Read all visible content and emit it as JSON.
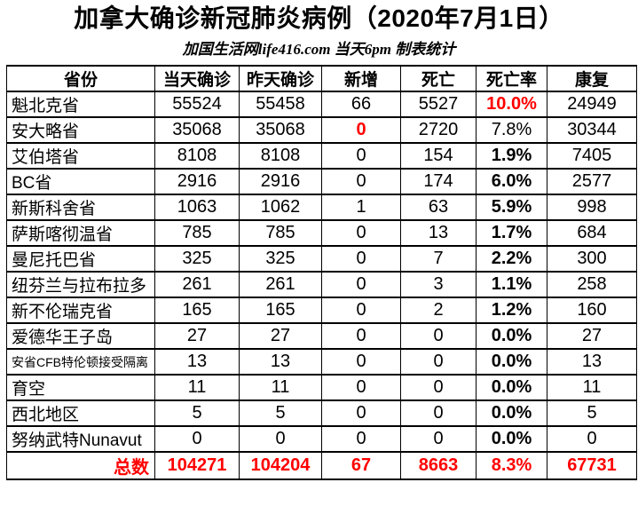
{
  "title": "加拿大确诊新冠肺炎病例（2020年7月1日）",
  "subtitle": "加国生活网life416.com 当天6pm 制表统计",
  "colors": {
    "accent_red": "#FF0000",
    "text": "#000000",
    "border": "#000000",
    "background": "#FFFFFF"
  },
  "table": {
    "headers": [
      "省份",
      "当天确诊",
      "昨天确诊",
      "新增",
      "死亡",
      "死亡率",
      "康复"
    ],
    "rows": [
      {
        "province": "魁北克省",
        "today": "55524",
        "yesterday": "55458",
        "new_cases": "66",
        "deaths": "5527",
        "death_rate": "10.0%",
        "recovered": "24949",
        "new_style": "normal",
        "rate_style": "red-bold",
        "small_label": false
      },
      {
        "province": "安大略省",
        "today": "35068",
        "yesterday": "35068",
        "new_cases": "0",
        "deaths": "2720",
        "death_rate": "7.8%",
        "recovered": "30344",
        "new_style": "red-bold",
        "rate_style": "normal",
        "small_label": false
      },
      {
        "province": "艾伯塔省",
        "today": "8108",
        "yesterday": "8108",
        "new_cases": "0",
        "deaths": "154",
        "death_rate": "1.9%",
        "recovered": "7405",
        "new_style": "normal",
        "rate_style": "bold",
        "small_label": false
      },
      {
        "province": "BC省",
        "today": "2916",
        "yesterday": "2916",
        "new_cases": "0",
        "deaths": "174",
        "death_rate": "6.0%",
        "recovered": "2577",
        "new_style": "normal",
        "rate_style": "bold",
        "small_label": false
      },
      {
        "province": "新斯科舍省",
        "today": "1063",
        "yesterday": "1062",
        "new_cases": "1",
        "deaths": "63",
        "death_rate": "5.9%",
        "recovered": "998",
        "new_style": "normal",
        "rate_style": "bold",
        "small_label": false
      },
      {
        "province": "萨斯喀彻温省",
        "today": "785",
        "yesterday": "785",
        "new_cases": "0",
        "deaths": "13",
        "death_rate": "1.7%",
        "recovered": "684",
        "new_style": "normal",
        "rate_style": "bold",
        "small_label": false
      },
      {
        "province": "曼尼托巴省",
        "today": "325",
        "yesterday": "325",
        "new_cases": "0",
        "deaths": "7",
        "death_rate": "2.2%",
        "recovered": "300",
        "new_style": "normal",
        "rate_style": "bold",
        "small_label": false
      },
      {
        "province": "纽芬兰与拉布拉多",
        "today": "261",
        "yesterday": "261",
        "new_cases": "0",
        "deaths": "3",
        "death_rate": "1.1%",
        "recovered": "258",
        "new_style": "normal",
        "rate_style": "bold",
        "small_label": false
      },
      {
        "province": "新不伦瑞克省",
        "today": "165",
        "yesterday": "165",
        "new_cases": "0",
        "deaths": "2",
        "death_rate": "1.2%",
        "recovered": "160",
        "new_style": "normal",
        "rate_style": "bold",
        "small_label": false
      },
      {
        "province": "爱德华王子岛",
        "today": "27",
        "yesterday": "27",
        "new_cases": "0",
        "deaths": "0",
        "death_rate": "0.0%",
        "recovered": "27",
        "new_style": "normal",
        "rate_style": "bold",
        "small_label": false
      },
      {
        "province": "安省CFB特伦顿接受隔离",
        "today": "13",
        "yesterday": "13",
        "new_cases": "0",
        "deaths": "0",
        "death_rate": "0.0%",
        "recovered": "13",
        "new_style": "normal",
        "rate_style": "bold",
        "small_label": true
      },
      {
        "province": "育空",
        "today": "11",
        "yesterday": "11",
        "new_cases": "0",
        "deaths": "0",
        "death_rate": "0.0%",
        "recovered": "11",
        "new_style": "normal",
        "rate_style": "bold",
        "small_label": false
      },
      {
        "province": "西北地区",
        "today": "5",
        "yesterday": "5",
        "new_cases": "0",
        "deaths": "0",
        "death_rate": "0.0%",
        "recovered": "5",
        "new_style": "normal",
        "rate_style": "bold",
        "small_label": false
      },
      {
        "province": "努纳武特Nunavut",
        "today": "0",
        "yesterday": "0",
        "new_cases": "0",
        "deaths": "0",
        "death_rate": "0.0%",
        "recovered": "0",
        "new_style": "normal",
        "rate_style": "bold",
        "small_label": false
      }
    ],
    "total": {
      "label": "总数",
      "today": "104271",
      "yesterday": "104204",
      "new_cases": "67",
      "deaths": "8663",
      "death_rate": "8.3%",
      "recovered": "67731"
    }
  },
  "chart_data": {
    "type": "table",
    "title": "加拿大确诊新冠肺炎病例（2020年7月1日）",
    "subtitle": "加国生活网life416.com 当天6pm 制表统计",
    "columns": [
      "省份",
      "当天确诊",
      "昨天确诊",
      "新增",
      "死亡",
      "死亡率",
      "康复"
    ],
    "rows": [
      [
        "魁北克省",
        55524,
        55458,
        66,
        5527,
        "10.0%",
        24949
      ],
      [
        "安大略省",
        35068,
        35068,
        0,
        2720,
        "7.8%",
        30344
      ],
      [
        "艾伯塔省",
        8108,
        8108,
        0,
        154,
        "1.9%",
        7405
      ],
      [
        "BC省",
        2916,
        2916,
        0,
        174,
        "6.0%",
        2577
      ],
      [
        "新斯科舍省",
        1063,
        1062,
        1,
        63,
        "5.9%",
        998
      ],
      [
        "萨斯喀彻温省",
        785,
        785,
        0,
        13,
        "1.7%",
        684
      ],
      [
        "曼尼托巴省",
        325,
        325,
        0,
        7,
        "2.2%",
        300
      ],
      [
        "纽芬兰与拉布拉多",
        261,
        261,
        0,
        3,
        "1.1%",
        258
      ],
      [
        "新不伦瑞克省",
        165,
        165,
        0,
        2,
        "1.2%",
        160
      ],
      [
        "爱德华王子岛",
        27,
        27,
        0,
        0,
        "0.0%",
        27
      ],
      [
        "安省CFB特伦顿接受隔离",
        13,
        13,
        0,
        0,
        "0.0%",
        13
      ],
      [
        "育空",
        11,
        11,
        0,
        0,
        "0.0%",
        11
      ],
      [
        "西北地区",
        5,
        5,
        0,
        0,
        "0.0%",
        5
      ],
      [
        "努纳武特Nunavut",
        0,
        0,
        0,
        0,
        "0.0%",
        0
      ]
    ],
    "total_row": [
      "总数",
      104271,
      104204,
      67,
      8663,
      "8.3%",
      67731
    ],
    "highlights": {
      "red_cells": [
        "魁北克省 死亡率 10.0%",
        "安大略省 新增 0",
        "总数 row all values"
      ],
      "red_hex": "#FF0000"
    }
  }
}
